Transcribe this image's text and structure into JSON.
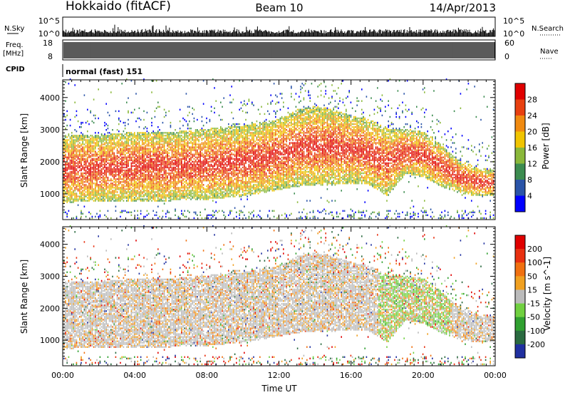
{
  "header": {
    "station": "Hokkaido (fitACF)",
    "beam": "Beam 10",
    "date": "14/Apr/2013"
  },
  "strips": {
    "nsky_label": "N.Sky",
    "nsky_top": "10^5",
    "nsky_bottom": "10^0",
    "nsearch_label": "N.Search",
    "nsearch_top": "10^5",
    "nsearch_bottom": "10^0",
    "freq_label": "Freq.",
    "freq_unit": "[MHz]",
    "freq_top": "18",
    "freq_bottom": "8",
    "nave_label": "Nave",
    "nave_top": "60",
    "nave_bottom": "0",
    "cpid_label": "CPID",
    "cpid_value": "normal (fast) 151"
  },
  "chart_data": [
    {
      "type": "heatmap",
      "title": "",
      "ylabel": "Slant Range [km]",
      "xlabel": "",
      "x_ticks": [
        "00:00",
        "04:00",
        "08:00",
        "12:00",
        "16:00",
        "20:00",
        "00:00"
      ],
      "y_ticks": [
        1000,
        2000,
        3000,
        4000
      ],
      "ylim": [
        200,
        4550
      ],
      "colorbar": {
        "label": "Power [dB]",
        "ticks": [
          4,
          8,
          12,
          16,
          20,
          24,
          28
        ],
        "colors": [
          "#0000ff",
          "#2a54a8",
          "#3c8c50",
          "#8ab83a",
          "#f0c400",
          "#f08a10",
          "#e84010",
          "#e00000"
        ]
      },
      "echo_band_km": {
        "hours": [
          0,
          2,
          4,
          6,
          8,
          10,
          12,
          13,
          14,
          15,
          16,
          17,
          18,
          19,
          20,
          21,
          22,
          23,
          24
        ],
        "bottom": [
          700,
          750,
          760,
          760,
          800,
          900,
          1100,
          1200,
          1250,
          1250,
          1300,
          1250,
          900,
          1600,
          1500,
          1200,
          1000,
          900,
          900
        ],
        "top": [
          2800,
          2800,
          2900,
          2900,
          3000,
          3100,
          3300,
          3600,
          3700,
          3600,
          3400,
          3300,
          3000,
          3000,
          2900,
          2500,
          2000,
          1800,
          1700
        ]
      }
    },
    {
      "type": "heatmap",
      "title": "",
      "ylabel": "Slant Range [km]",
      "xlabel": "Time UT",
      "x_ticks": [
        "00:00",
        "04:00",
        "08:00",
        "12:00",
        "16:00",
        "20:00",
        "00:00"
      ],
      "y_ticks": [
        1000,
        2000,
        3000,
        4000
      ],
      "ylim": [
        200,
        4550
      ],
      "colorbar": {
        "label": "Velocity [m s^-1]",
        "ticks": [
          200,
          100,
          50,
          15,
          -15,
          -50,
          -100,
          -200
        ],
        "colors": [
          "#2030a0",
          "#2a6a40",
          "#30a030",
          "#70d040",
          "#bbbbbb",
          "#f0a020",
          "#f07010",
          "#e83010",
          "#e00000"
        ]
      }
    }
  ]
}
